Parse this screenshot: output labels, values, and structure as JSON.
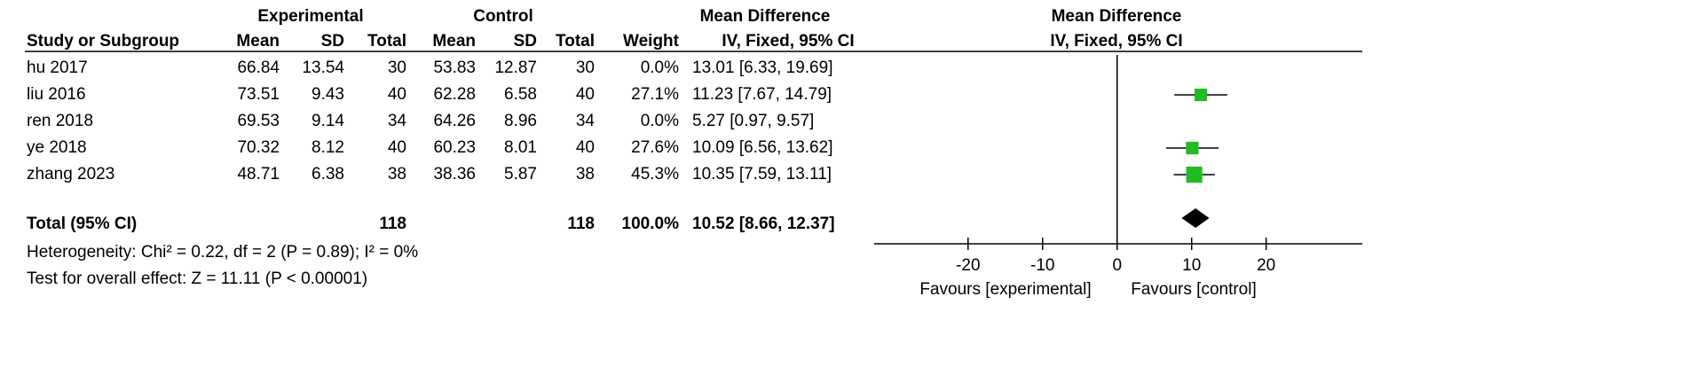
{
  "table": {
    "group_headers": [
      "Experimental",
      "Control",
      "Mean Difference"
    ],
    "columns": [
      "Study or Subgroup",
      "Mean",
      "SD",
      "Total",
      "Mean",
      "SD",
      "Total",
      "Weight",
      "IV, Fixed, 95% CI"
    ],
    "rows": [
      [
        "hu 2017",
        "66.84",
        "13.54",
        "30",
        "53.83",
        "12.87",
        "30",
        "0.0%",
        "13.01 [6.33, 19.69]"
      ],
      [
        "liu 2016",
        "73.51",
        "9.43",
        "40",
        "62.28",
        "6.58",
        "40",
        "27.1%",
        "11.23 [7.67, 14.79]"
      ],
      [
        "ren 2018",
        "69.53",
        "9.14",
        "34",
        "64.26",
        "8.96",
        "34",
        "0.0%",
        "5.27 [0.97, 9.57]"
      ],
      [
        "ye 2018",
        "70.32",
        "8.12",
        "40",
        "60.23",
        "8.01",
        "40",
        "27.6%",
        "10.09 [6.56, 13.62]"
      ],
      [
        "zhang 2023",
        "48.71",
        "6.38",
        "38",
        "38.36",
        "5.87",
        "38",
        "45.3%",
        "10.35 [7.59, 13.11]"
      ]
    ],
    "total": [
      "Total (95% CI)",
      "118",
      "118",
      "100.0%",
      "10.52 [8.66, 12.37]"
    ],
    "heterogeneity": "Heterogeneity: Chi² = 0.22, df = 2 (P = 0.89); I² = 0%",
    "overall_effect": "Test for overall effect: Z = 11.11 (P < 0.00001)"
  },
  "chart_data": {
    "type": "forest",
    "title": "Mean Difference",
    "subtitle": "IV, Fixed, 95% CI",
    "values": [
      null,
      11.23,
      null,
      10.09,
      10.35
    ],
    "lower": [
      null,
      7.67,
      null,
      6.56,
      7.59
    ],
    "upper": [
      null,
      14.79,
      null,
      13.62,
      13.11
    ],
    "weights": [
      0,
      27.1,
      0,
      27.6,
      45.3
    ],
    "total": {
      "value": 10.52,
      "lower": 8.66,
      "upper": 12.37
    },
    "color": "#22bb22",
    "xlim": [
      -32.6,
      32.9
    ],
    "xticks": [
      -20,
      -10,
      0,
      10,
      20
    ],
    "xlabel_left": "Favours [experimental]",
    "xlabel_right": "Favours [control]"
  }
}
